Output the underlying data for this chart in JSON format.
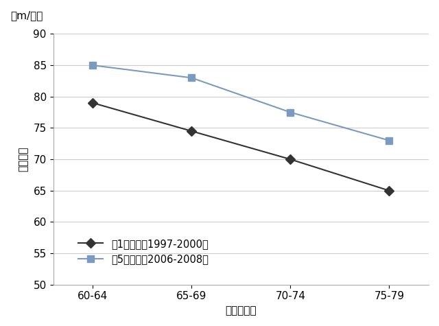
{
  "x_labels": [
    "60-64",
    "65-69",
    "70-74",
    "75-79"
  ],
  "series1_label": "第1次調査（1997-2000）",
  "series1_values": [
    79,
    74.5,
    70,
    65
  ],
  "series1_color": "#333333",
  "series1_marker": "D",
  "series2_label": "第5次調査（2006-2008）",
  "series2_values": [
    85,
    83,
    77.5,
    73
  ],
  "series2_color": "#7a9bbf",
  "series2_marker": "s",
  "ylabel_rotated": "歩行速度",
  "ylabel_top": "（m/分）",
  "xlabel": "年齢（歳）",
  "ylim": [
    50,
    90
  ],
  "yticks": [
    50,
    55,
    60,
    65,
    70,
    75,
    80,
    85,
    90
  ],
  "background_color": "#ffffff",
  "grid_color": "#cccccc",
  "label_fontsize": 11,
  "tick_fontsize": 11,
  "legend_fontsize": 10.5
}
